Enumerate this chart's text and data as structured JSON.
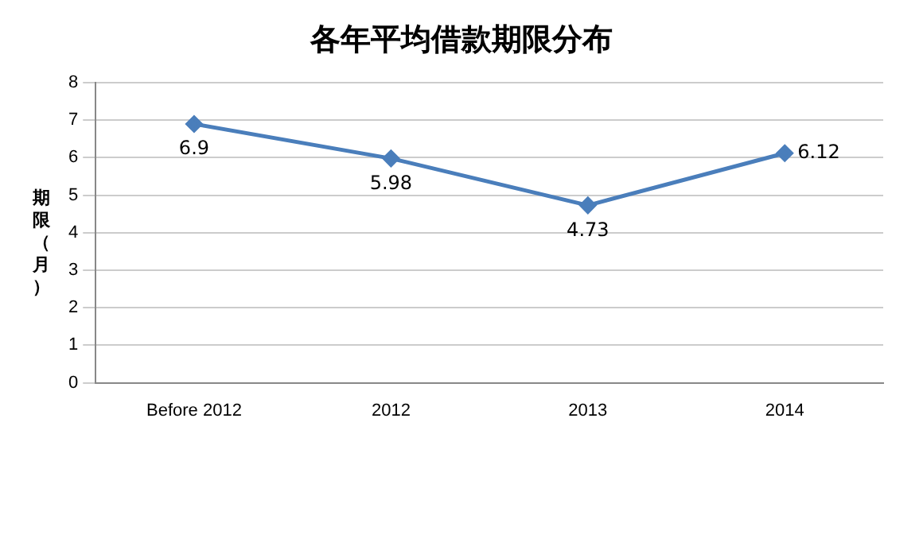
{
  "chart_data": {
    "type": "line",
    "title": "各年平均借款期限分布",
    "ylabel": "期限（月）",
    "categories": [
      "Before 2012",
      "2012",
      "2013",
      "2014"
    ],
    "series": [
      {
        "color": "#4a7ebb",
        "values": [
          6.9,
          5.98,
          4.73,
          6.12
        ]
      }
    ],
    "ylim": [
      0,
      8
    ],
    "yticks": [
      0,
      1,
      2,
      3,
      4,
      5,
      6,
      7,
      8
    ],
    "grid": "y",
    "legend": false,
    "marker": "diamond",
    "line_style": "solid",
    "data_labels": true
  }
}
